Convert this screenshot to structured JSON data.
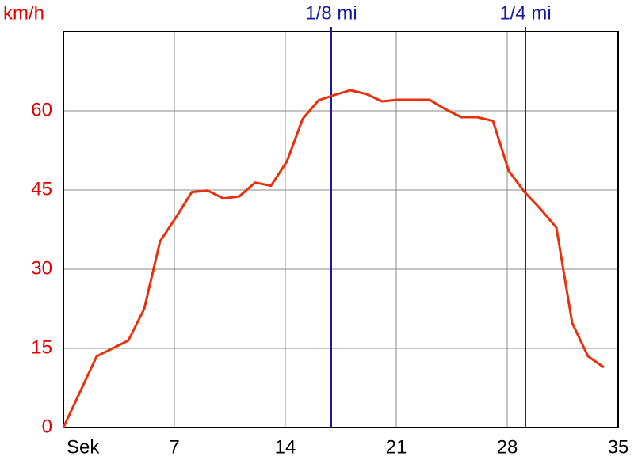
{
  "chart_data": {
    "type": "line",
    "y_label": "km/h",
    "x": [
      0,
      2.1,
      4.1,
      5.1,
      6.1,
      7.1,
      8.1,
      9.1,
      10.1,
      11.1,
      12.1,
      13.1,
      14.1,
      15.1,
      16.1,
      17.1,
      18.1,
      19.1,
      20.1,
      21.1,
      22.1,
      23.1,
      24.1,
      25.1,
      26.1,
      27.1,
      28.1,
      29.1,
      30.1,
      31.1,
      32.1,
      33.1,
      34.1
    ],
    "values": [
      0,
      13.5,
      16.5,
      22.5,
      35.3,
      39.8,
      44.6,
      44.9,
      43.4,
      43.8,
      46.4,
      45.8,
      50.4,
      58.5,
      62,
      63,
      63.9,
      63.2,
      61.8,
      62.1,
      62.1,
      62.1,
      60.3,
      58.8,
      58.8,
      58.1,
      48.6,
      44.6,
      41.4,
      37.9,
      19.8,
      13.5,
      11.4
    ],
    "color": "#e8300a",
    "xlim": [
      0,
      35
    ],
    "xticks": [
      {
        "value": 0,
        "label": "Sek"
      },
      7,
      14,
      21,
      28,
      35
    ],
    "ylim": [
      0,
      75
    ],
    "yticks": [
      0,
      15,
      30,
      45,
      60
    ],
    "grid": true,
    "markers": [
      {
        "x": 16.9,
        "label": "1/8 mi",
        "color": "#1a1aa0"
      },
      {
        "x": 29.15,
        "label": "1/4 mi",
        "color": "#1a1aa0"
      }
    ]
  }
}
